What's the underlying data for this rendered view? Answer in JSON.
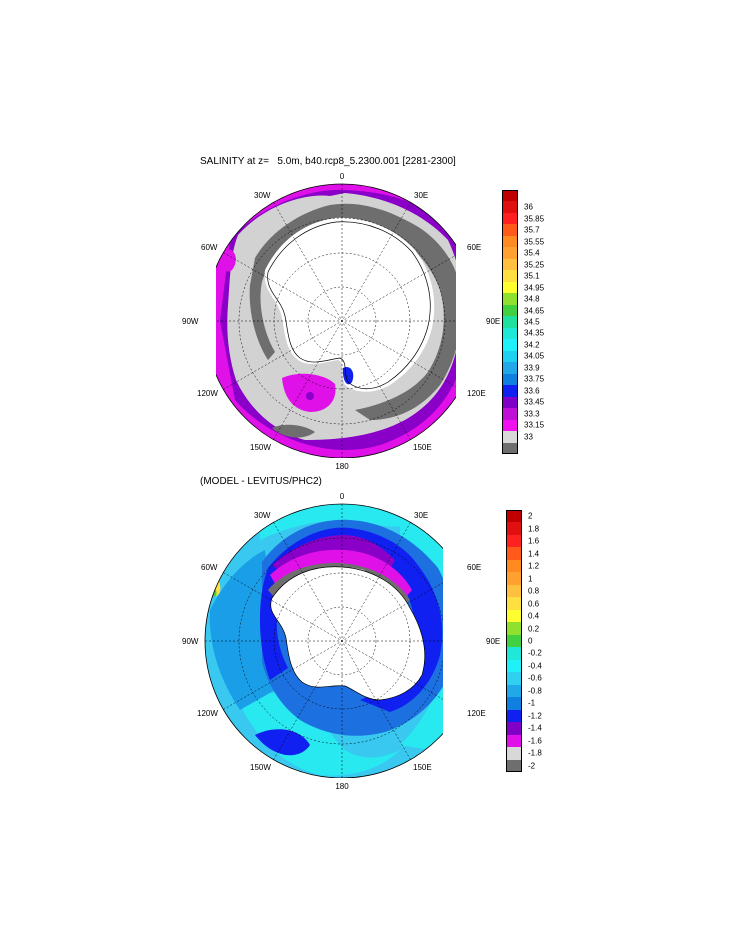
{
  "panel1": {
    "title": "SALINITY at z=   5.0m, b40.rcp8_5.2300.001 [2281-2300]",
    "lon_labels": {
      "top": "0",
      "top_left": "30W",
      "top_right": "30E",
      "left_upper": "60W",
      "right_upper": "60E",
      "left": "90W",
      "right": "90E",
      "left_lower": "120W",
      "right_lower": "120E",
      "bottom_left": "150W",
      "bottom_right": "150E",
      "bottom": "180"
    },
    "colorbar": {
      "labels": [
        "36",
        "35.85",
        "35.7",
        "35.55",
        "35.4",
        "35.25",
        "35.1",
        "34.95",
        "34.8",
        "34.65",
        "34.5",
        "34.35",
        "34.2",
        "34.05",
        "33.9",
        "33.75",
        "33.6",
        "33.45",
        "33.3",
        "33.15",
        "33"
      ],
      "colors": [
        "#c00000",
        "#e01010",
        "#ff2020",
        "#ff5a1a",
        "#ff8a20",
        "#ffa030",
        "#ffc040",
        "#ffe040",
        "#ffff30",
        "#90e030",
        "#40d040",
        "#20e0a0",
        "#20e8d8",
        "#20f0f8",
        "#20d0f0",
        "#20a8e8",
        "#1080e0",
        "#1020f0",
        "#8000c8",
        "#c010d8",
        "#f010f0",
        "#d8d8d8",
        "#6e6e6e"
      ]
    },
    "palette": {
      "gray_dark": "#6e6e6e",
      "gray_light": "#d2d2d2",
      "magenta": "#e010e8",
      "purple": "#8a00c8",
      "blue": "#1020f0"
    }
  },
  "panel2": {
    "title": "(MODEL - LEVITUS/PHC2)",
    "lon_labels": {
      "top": "0",
      "top_left": "30W",
      "top_right": "30E",
      "left_upper": "60W",
      "right_upper": "60E",
      "left": "90W",
      "right": "90E",
      "left_lower": "120W",
      "right_lower": "120E",
      "bottom_left": "150W",
      "bottom_right": "150E",
      "bottom": "180"
    },
    "colorbar": {
      "labels": [
        "2",
        "1.8",
        "1.6",
        "1.4",
        "1.2",
        "1",
        "0.8",
        "0.6",
        "0.4",
        "0.2",
        "0",
        "-0.2",
        "-0.4",
        "-0.6",
        "-0.8",
        "-1",
        "-1.2",
        "-1.4",
        "-1.6",
        "-1.8",
        "-2"
      ],
      "colors": [
        "#c00000",
        "#e01010",
        "#ff2020",
        "#ff5a1a",
        "#ff8a20",
        "#ffa030",
        "#ffc040",
        "#ffe040",
        "#ffff30",
        "#90e030",
        "#40d040",
        "#20e8d8",
        "#20f0f8",
        "#30d0f0",
        "#20a8e8",
        "#1080e0",
        "#1020f0",
        "#8000c8",
        "#e010e8",
        "#d8d8d8",
        "#6e6e6e"
      ]
    },
    "palette": {
      "cyan": "#28e8f0",
      "light_blue": "#38c8f0",
      "mid_blue": "#1a9ee8",
      "blue": "#1c70e0",
      "deep_blue": "#1020f0",
      "purple": "#8a00c8",
      "magenta": "#e010e8",
      "gray_light": "#d2d2d2",
      "gray_dark": "#6e6e6e"
    }
  }
}
